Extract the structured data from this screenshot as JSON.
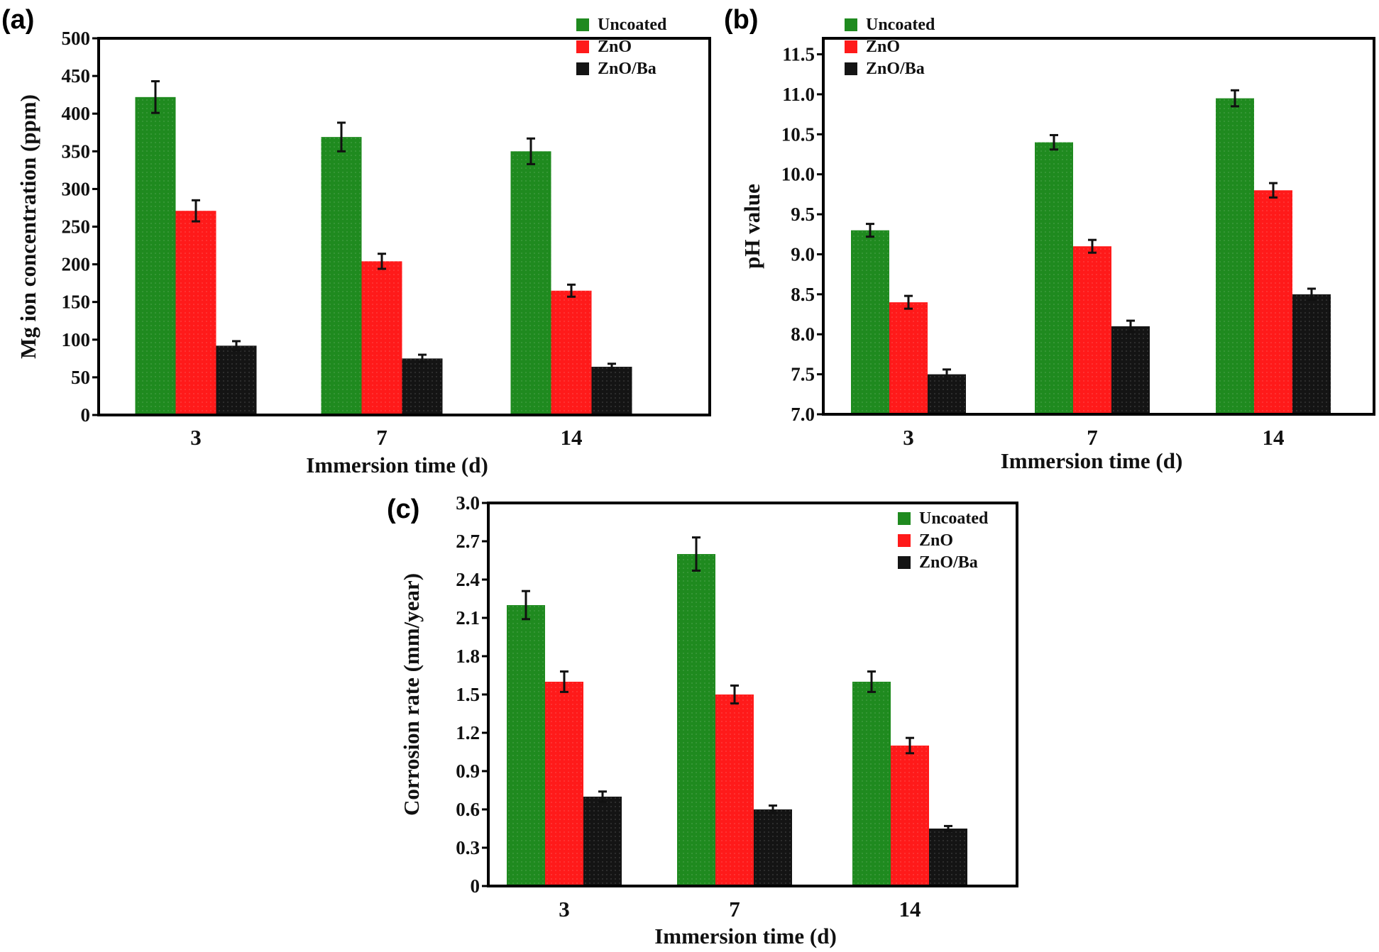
{
  "colors": {
    "Uncoated": "#1f8a1f",
    "ZnO": "#ff1a1a",
    "ZnO/Ba": "#141414"
  },
  "chart_data": [
    {
      "panel": "(a)",
      "type": "bar",
      "title": "",
      "xlabel": "Immersion time (d)",
      "ylabel": "Mg ion concentration (ppm)",
      "categories": [
        "3",
        "7",
        "14"
      ],
      "ylim": [
        0,
        500
      ],
      "yticks": [
        0,
        50,
        100,
        150,
        200,
        250,
        300,
        350,
        400,
        450,
        500
      ],
      "ytick_labels": [
        "0",
        "50",
        "100",
        "150",
        "200",
        "250",
        "300",
        "350",
        "400",
        "450",
        "500"
      ],
      "legend": {
        "placement": "top-right",
        "entries": [
          "Uncoated",
          "ZnO",
          "ZnO/Ba"
        ]
      },
      "grid": false,
      "series": [
        {
          "name": "Uncoated",
          "values": [
            422,
            369,
            350
          ],
          "errors": [
            21,
            19,
            17
          ]
        },
        {
          "name": "ZnO",
          "values": [
            271,
            204,
            165
          ],
          "errors": [
            14,
            10,
            8
          ]
        },
        {
          "name": "ZnO/Ba",
          "values": [
            92,
            75,
            64
          ],
          "errors": [
            6,
            5,
            4
          ]
        }
      ]
    },
    {
      "panel": "(b)",
      "type": "bar",
      "title": "",
      "xlabel": "Immersion time (d)",
      "ylabel": "pH value",
      "categories": [
        "3",
        "7",
        "14"
      ],
      "ylim": [
        7.0,
        11.7
      ],
      "yticks": [
        7.0,
        7.5,
        8.0,
        8.5,
        9.0,
        9.5,
        10.0,
        10.5,
        11.0,
        11.5
      ],
      "ytick_labels": [
        "7.0",
        "7.5",
        "8.0",
        "8.5",
        "9.0",
        "9.5",
        "10.0",
        "10.5",
        "11.0",
        "11.5"
      ],
      "legend": {
        "placement": "top-left",
        "entries": [
          "Uncoated",
          "ZnO",
          "ZnO/Ba"
        ]
      },
      "grid": false,
      "series": [
        {
          "name": "Uncoated",
          "values": [
            9.3,
            10.4,
            10.95
          ],
          "errors": [
            0.08,
            0.09,
            0.1
          ]
        },
        {
          "name": "ZnO",
          "values": [
            8.4,
            9.1,
            9.8
          ],
          "errors": [
            0.08,
            0.08,
            0.09
          ]
        },
        {
          "name": "ZnO/Ba",
          "values": [
            7.5,
            8.1,
            8.5
          ],
          "errors": [
            0.06,
            0.07,
            0.07
          ]
        }
      ]
    },
    {
      "panel": "(c)",
      "type": "bar",
      "title": "",
      "xlabel": "Immersion time (d)",
      "ylabel": "Corrosion rate (mm/year)",
      "categories": [
        "3",
        "7",
        "14"
      ],
      "ylim": [
        0,
        3.0
      ],
      "yticks": [
        0,
        0.3,
        0.6,
        0.9,
        1.2,
        1.5,
        1.8,
        2.1,
        2.4,
        2.7,
        3.0
      ],
      "ytick_labels": [
        "0",
        "0.3",
        "0.6",
        "0.9",
        "1.2",
        "1.5",
        "1.8",
        "2.1",
        "2.4",
        "2.7",
        "3.0"
      ],
      "legend": {
        "placement": "top-right",
        "entries": [
          "Uncoated",
          "ZnO",
          "ZnO/Ba"
        ]
      },
      "grid": false,
      "series": [
        {
          "name": "Uncoated",
          "values": [
            2.2,
            2.6,
            1.6
          ],
          "errors": [
            0.11,
            0.13,
            0.08
          ]
        },
        {
          "name": "ZnO",
          "values": [
            1.6,
            1.5,
            1.1
          ],
          "errors": [
            0.08,
            0.07,
            0.06
          ]
        },
        {
          "name": "ZnO/Ba",
          "values": [
            0.7,
            0.6,
            0.45
          ],
          "errors": [
            0.04,
            0.03,
            0.02
          ]
        }
      ]
    }
  ]
}
